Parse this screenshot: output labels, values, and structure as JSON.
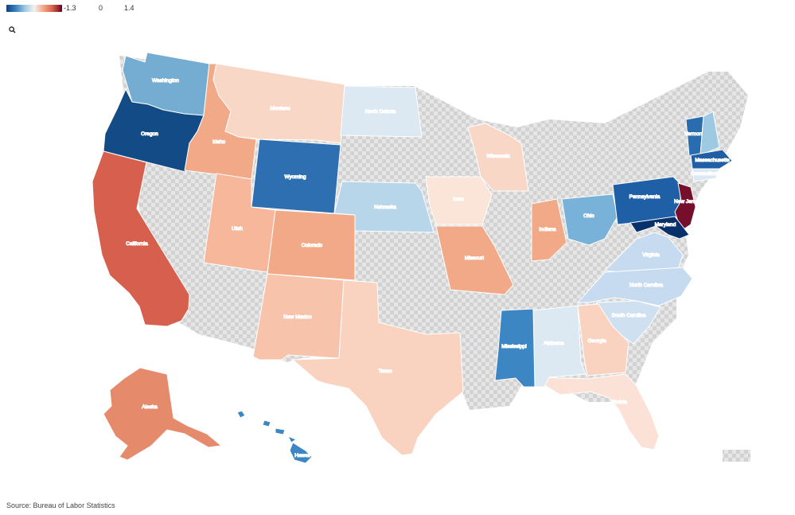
{
  "legend": {
    "min_label": "-1.3",
    "mid_label": "0",
    "max_label": "1.4"
  },
  "source": "Source: Bureau of Labor Statistics",
  "zoom_icon": "search-icon",
  "colors": {
    "nodata": "#dcdcdc",
    "border": "#ffffff"
  },
  "states": [
    {
      "key": "washington",
      "label": "Washington",
      "fill": "#74add1",
      "light": true
    },
    {
      "key": "oregon",
      "label": "Oregon",
      "fill": "#134b86",
      "light": true
    },
    {
      "key": "california",
      "label": "California",
      "fill": "#d6604d",
      "light": true
    },
    {
      "key": "idaho",
      "label": "Idaho",
      "fill": "#f1a987",
      "light": true
    },
    {
      "key": "montana",
      "label": "Montana",
      "fill": "#f9d7c6",
      "light": false
    },
    {
      "key": "wyoming",
      "label": "Wyoming",
      "fill": "#2e6fb1",
      "light": true
    },
    {
      "key": "utah",
      "label": "Utah",
      "fill": "#f6b79b",
      "light": true
    },
    {
      "key": "colorado",
      "label": "Colorado",
      "fill": "#f1a987",
      "light": false
    },
    {
      "key": "new_mexico",
      "label": "New Mexico",
      "fill": "#f7c4ab",
      "light": false
    },
    {
      "key": "texas",
      "label": "Texas",
      "fill": "#f9d3c0",
      "light": false
    },
    {
      "key": "north_dakota",
      "label": "North Dakota",
      "fill": "#dce9f3",
      "light": false
    },
    {
      "key": "nebraska",
      "label": "Nebraska",
      "fill": "#b7d6ea",
      "light": false
    },
    {
      "key": "iowa",
      "label": "Iowa",
      "fill": "#fbe4d8",
      "light": false
    },
    {
      "key": "missouri",
      "label": "Missouri",
      "fill": "#f1a987",
      "light": false
    },
    {
      "key": "wisconsin",
      "label": "Wisconsin",
      "fill": "#f9d7c6",
      "light": false
    },
    {
      "key": "indiana",
      "label": "Indiana",
      "fill": "#f1a987",
      "light": false
    },
    {
      "key": "ohio",
      "label": "Ohio",
      "fill": "#79b2d9",
      "light": false
    },
    {
      "key": "pennsylvania",
      "label": "Pennsylvania",
      "fill": "#1f5fa6",
      "light": false
    },
    {
      "key": "new_jersey",
      "label": "New Jersey",
      "fill": "#760f2c",
      "light": true
    },
    {
      "key": "maryland",
      "label": "Maryland",
      "fill": "#08306b",
      "light": true
    },
    {
      "key": "vermont",
      "label": "Vermont",
      "fill": "#2a6cb0",
      "light": true
    },
    {
      "key": "new_hampshire",
      "label": "",
      "fill": "#9ecae1",
      "light": false
    },
    {
      "key": "massachusetts",
      "label": "Massachusetts",
      "fill": "#1f5fa6",
      "light": true
    },
    {
      "key": "connecticut",
      "label": "Connecticut",
      "fill": "#dce9f3",
      "light": false
    },
    {
      "key": "virginia",
      "label": "Virginia",
      "fill": "#c6dbef",
      "light": false
    },
    {
      "key": "north_carolina",
      "label": "North Carolina",
      "fill": "#c6dbef",
      "light": false
    },
    {
      "key": "south_carolina",
      "label": "South Carolina",
      "fill": "#cfe1f1",
      "light": false
    },
    {
      "key": "georgia",
      "label": "Georgia",
      "fill": "#f9d3c0",
      "light": false
    },
    {
      "key": "florida",
      "label": "Florida",
      "fill": "#fbe1d6",
      "light": false
    },
    {
      "key": "alabama",
      "label": "Alabama",
      "fill": "#dce9f3",
      "light": false
    },
    {
      "key": "mississippi",
      "label": "Mississippi",
      "fill": "#3c87c3",
      "light": true
    },
    {
      "key": "alaska",
      "label": "Alaska",
      "fill": "#e68a6c",
      "light": true
    },
    {
      "key": "hawaii",
      "label": "Hawaii",
      "fill": "#3c87c3",
      "light": false
    }
  ]
}
